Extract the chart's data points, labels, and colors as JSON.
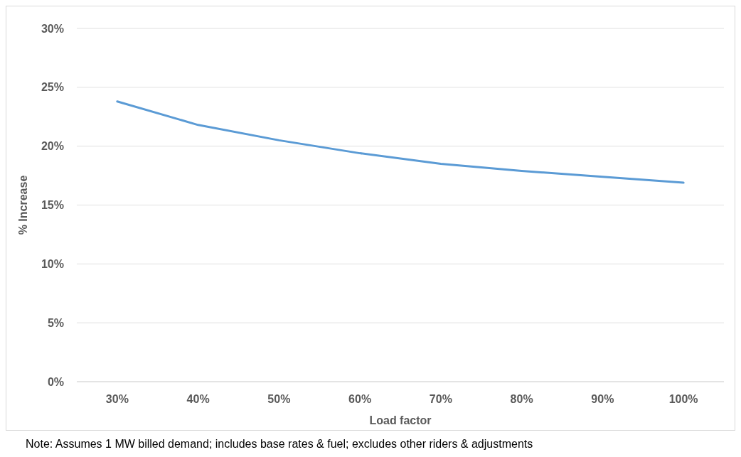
{
  "chart_data": {
    "type": "line",
    "xlabel": "Load factor",
    "ylabel": "% Increase",
    "categories": [
      "30%",
      "40%",
      "50%",
      "60%",
      "70%",
      "80%",
      "90%",
      "100%"
    ],
    "series": [
      {
        "color": "#5b9bd5",
        "values": [
          23.8,
          21.8,
          20.5,
          19.4,
          18.5,
          17.9,
          17.4,
          16.9
        ]
      }
    ],
    "ylim": [
      0,
      30
    ],
    "yticks": [
      {
        "value": 0,
        "label": "0%"
      },
      {
        "value": 5,
        "label": "5%"
      },
      {
        "value": 10,
        "label": "10%"
      },
      {
        "value": 15,
        "label": "15%"
      },
      {
        "value": 20,
        "label": "20%"
      },
      {
        "value": 25,
        "label": "25%"
      },
      {
        "value": 30,
        "label": "30%"
      }
    ],
    "grid": "y",
    "marker": "none",
    "line_style": "solid",
    "annotations": [
      "Note: Assumes 1 MW billed demand; includes base rates & fuel; excludes other riders & adjustments"
    ]
  }
}
